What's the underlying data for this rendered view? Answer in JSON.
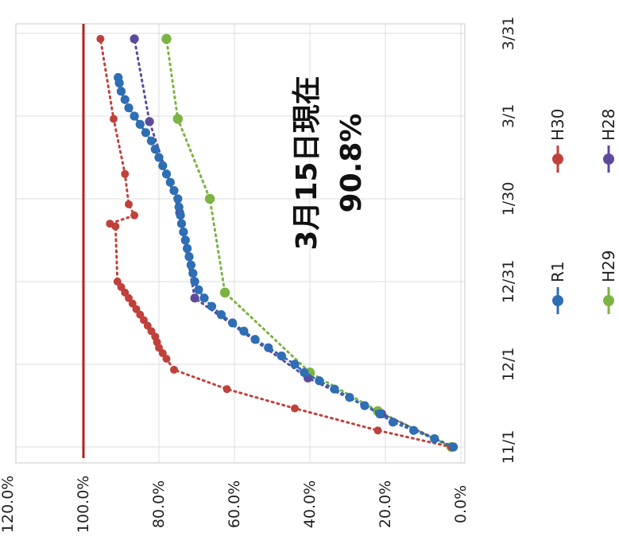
{
  "chart_data": {
    "type": "line",
    "rotated": "90deg-clockwise",
    "xlabel": "",
    "ylabel": "",
    "x_ticks": [
      "11/1",
      "12/1",
      "12/31",
      "1/30",
      "3/1",
      "3/31"
    ],
    "y_ticks": [
      "0.0%",
      "20.0%",
      "40.0%",
      "60.0%",
      "80.0%",
      "100.0%",
      "120.0%"
    ],
    "x_domain": [
      "11/1",
      "3/31"
    ],
    "ylim": [
      0,
      120
    ],
    "grid": true,
    "target_line": {
      "value": 100,
      "color": "#b22222"
    },
    "annotation": {
      "line1": "3月15日現在",
      "line2": "90.8%"
    },
    "legend": [
      {
        "label": "R1",
        "color": "#2f6eb4"
      },
      {
        "label": "H30",
        "color": "#c0413b"
      },
      {
        "label": "H29",
        "color": "#7cb342"
      },
      {
        "label": "H28",
        "color": "#5e4a9c"
      }
    ],
    "series": [
      {
        "name": "R1",
        "color": "#2f6eb4",
        "marker_size": 9,
        "x": [
          "11/1",
          "11/4",
          "11/7",
          "11/10",
          "11/13",
          "11/16",
          "11/19",
          "11/22",
          "11/25",
          "11/28",
          "12/1",
          "12/4",
          "12/7",
          "12/10",
          "12/13",
          "12/16",
          "12/19",
          "12/22",
          "12/25",
          "12/28",
          "12/31",
          "1/3",
          "1/6",
          "1/9",
          "1/12",
          "1/15",
          "1/18",
          "1/21",
          "1/24",
          "1/27",
          "1/30",
          "2/2",
          "2/5",
          "2/8",
          "2/11",
          "2/14",
          "2/17",
          "2/20",
          "2/23",
          "2/26",
          "3/1",
          "3/4",
          "3/7",
          "3/10",
          "3/13",
          "3/15"
        ],
        "y": [
          2.0,
          7.0,
          12.5,
          18.0,
          21.5,
          25.5,
          29.5,
          33.5,
          37.5,
          41.5,
          44.0,
          47.5,
          51.0,
          54.5,
          57.5,
          60.5,
          63.5,
          66.0,
          68.0,
          69.5,
          70.5,
          71.0,
          71.5,
          72.0,
          72.5,
          73.0,
          73.5,
          74.0,
          74.3,
          74.7,
          75.0,
          76.0,
          77.0,
          78.0,
          79.0,
          80.0,
          81.0,
          82.0,
          83.5,
          85.0,
          86.5,
          88.0,
          89.0,
          90.0,
          90.5,
          90.8
        ]
      },
      {
        "name": "H30",
        "color": "#c0413b",
        "marker_size": 8,
        "x": [
          "11/1",
          "11/7",
          "11/15",
          "11/22",
          "11/29",
          "12/3",
          "12/5",
          "12/7",
          "12/9",
          "12/11",
          "12/13",
          "12/15",
          "12/17",
          "12/19",
          "12/21",
          "12/23",
          "12/25",
          "12/27",
          "12/29",
          "12/31",
          "1/20",
          "1/21",
          "1/24",
          "1/28",
          "2/8",
          "2/28",
          "3/29"
        ],
        "y": [
          2.5,
          22.0,
          44.0,
          62.0,
          76.0,
          78.0,
          79.0,
          80.0,
          80.5,
          81.0,
          82.0,
          83.0,
          84.0,
          85.0,
          86.0,
          87.0,
          88.0,
          89.0,
          90.0,
          91.0,
          91.5,
          93.0,
          86.5,
          88.0,
          89.0,
          92.0,
          95.5
        ]
      },
      {
        "name": "H29",
        "color": "#7cb342",
        "marker_size": 10,
        "x": [
          "11/1",
          "11/14",
          "11/28",
          "12/27",
          "1/30",
          "2/28",
          "3/29"
        ],
        "y": [
          2.5,
          22.0,
          40.0,
          62.5,
          66.5,
          75.0,
          78.0
        ]
      },
      {
        "name": "H28",
        "color": "#5e4a9c",
        "marker_size": 9,
        "x": [
          "11/1",
          "11/13",
          "11/26",
          "12/25",
          "1/25",
          "2/27",
          "3/29"
        ],
        "y": [
          2.0,
          21.0,
          40.5,
          70.5,
          74.5,
          82.5,
          86.5
        ]
      }
    ]
  }
}
